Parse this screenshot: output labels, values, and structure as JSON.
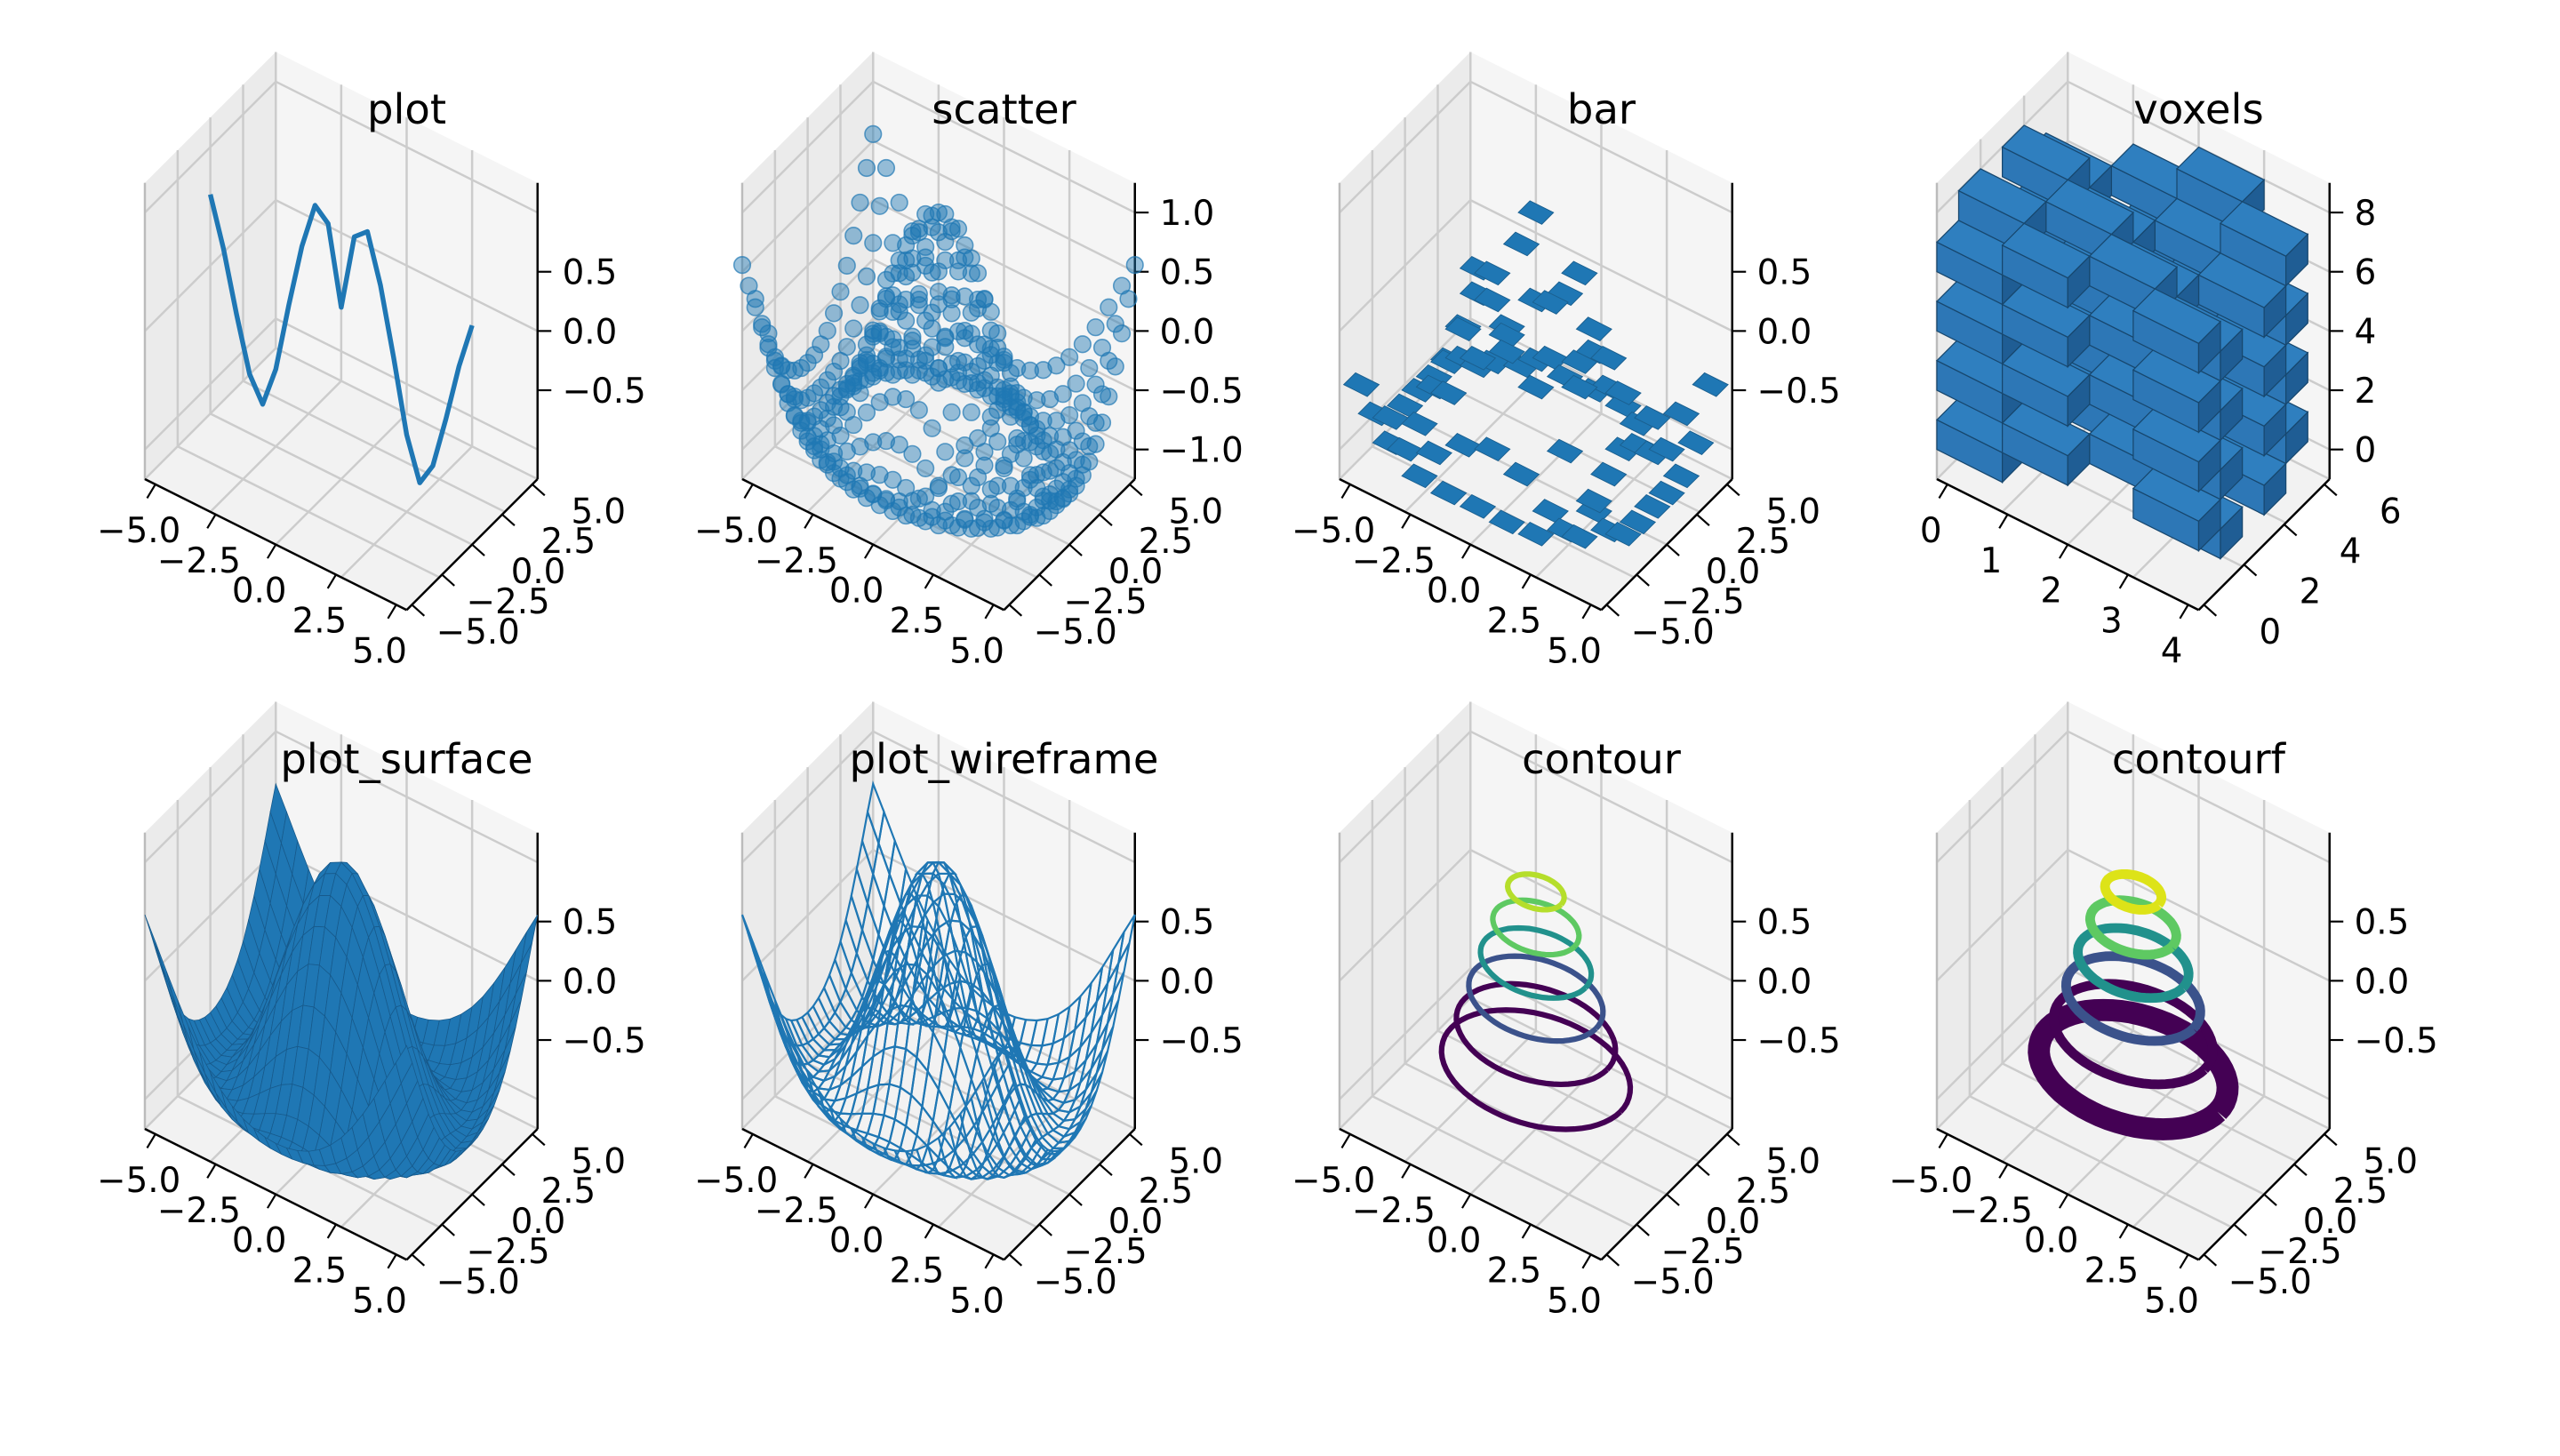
{
  "figure": {
    "background": "#ffffff",
    "pane_color": "#f2f2f2",
    "grid_color": "#cccccc",
    "series_color": "#1f77b4",
    "voxel_face": "#2d77b6",
    "voxel_side": "#1f5d94",
    "voxel_top": "#2f7fbf"
  },
  "chart_data": [
    {
      "type": "line3d",
      "title": "plot",
      "x_ticks": [
        "−5.0",
        "−2.5",
        "0.0",
        "2.5",
        "5.0"
      ],
      "y_ticks": [
        "−5.0",
        "−2.5",
        "0.0",
        "2.5",
        "5.0"
      ],
      "z_ticks": [
        "−0.5",
        "0.0",
        "0.5"
      ],
      "xlim": [
        -5,
        5
      ],
      "ylim": [
        -5,
        5
      ],
      "zlim": [
        -1,
        1
      ],
      "grid": true,
      "x": [
        -5,
        -4.5,
        -4,
        -3.5,
        -3,
        -2.5,
        -2,
        -1.5,
        -1,
        -0.5,
        0,
        0.5,
        1,
        1.5,
        2,
        2.5,
        3,
        3.5,
        4,
        4.5,
        5
      ],
      "z": [
        0.6,
        0.2,
        -0.3,
        -0.75,
        -0.95,
        -0.6,
        0.0,
        0.55,
        0.95,
        0.85,
        0.2,
        0.85,
        0.95,
        0.55,
        0.0,
        -0.6,
        -0.95,
        -0.75,
        -0.3,
        0.2,
        0.6
      ]
    },
    {
      "type": "scatter3d",
      "title": "scatter",
      "x_ticks": [
        "−5.0",
        "−2.5",
        "0.0",
        "2.5",
        "5.0"
      ],
      "y_ticks": [
        "−5.0",
        "−2.5",
        "0.0",
        "2.5",
        "5.0"
      ],
      "z_ticks": [
        "−1.0",
        "−0.5",
        "0.0",
        "0.5",
        "1.0"
      ],
      "xlim": [
        -5,
        5
      ],
      "ylim": [
        -5,
        5
      ],
      "zlim": [
        -1,
        1
      ],
      "grid": true
    },
    {
      "type": "bar3d",
      "title": "bar",
      "x_ticks": [
        "−5.0",
        "−2.5",
        "0.0",
        "2.5",
        "5.0"
      ],
      "y_ticks": [
        "−5.0",
        "−2.5",
        "0.0",
        "2.5",
        "5.0"
      ],
      "z_ticks": [
        "−0.5",
        "0.0",
        "0.5"
      ],
      "xlim": [
        -5,
        5
      ],
      "ylim": [
        -5,
        5
      ],
      "zlim": [
        -1,
        1
      ],
      "grid": true
    },
    {
      "type": "voxels",
      "title": "voxels",
      "x_ticks": [
        "0",
        "1",
        "2",
        "3",
        "4"
      ],
      "y_ticks": [
        "0",
        "2",
        "4",
        "6"
      ],
      "z_ticks": [
        "0",
        "2",
        "4",
        "6",
        "8"
      ],
      "xlim": [
        0,
        4
      ],
      "ylim": [
        0,
        6
      ],
      "zlim": [
        0,
        8
      ],
      "grid": true
    },
    {
      "type": "surface",
      "title": "plot_surface",
      "x_ticks": [
        "−5.0",
        "−2.5",
        "0.0",
        "2.5",
        "5.0"
      ],
      "y_ticks": [
        "−5.0",
        "−2.5",
        "0.0",
        "2.5",
        "5.0"
      ],
      "z_ticks": [
        "−0.5",
        "0.0",
        "0.5"
      ],
      "xlim": [
        -5,
        5
      ],
      "ylim": [
        -5,
        5
      ],
      "zlim": [
        -1,
        1
      ],
      "grid": true
    },
    {
      "type": "wireframe",
      "title": "plot_wireframe",
      "x_ticks": [
        "−5.0",
        "−2.5",
        "0.0",
        "2.5",
        "5.0"
      ],
      "y_ticks": [
        "−5.0",
        "−2.5",
        "0.0",
        "2.5",
        "5.0"
      ],
      "z_ticks": [
        "−0.5",
        "0.0",
        "0.5"
      ],
      "xlim": [
        -5,
        5
      ],
      "ylim": [
        -5,
        5
      ],
      "zlim": [
        -1,
        1
      ],
      "grid": true
    },
    {
      "type": "contour3d",
      "title": "contour",
      "x_ticks": [
        "−5.0",
        "−2.5",
        "0.0",
        "2.5",
        "5.0"
      ],
      "y_ticks": [
        "−5.0",
        "−2.5",
        "0.0",
        "2.5",
        "5.0"
      ],
      "z_ticks": [
        "−0.5",
        "0.0",
        "0.5"
      ],
      "xlim": [
        -5,
        5
      ],
      "ylim": [
        -5,
        5
      ],
      "zlim": [
        -1,
        1
      ],
      "grid": true,
      "level_colors": [
        "#440154",
        "#3b528b",
        "#21918c",
        "#5ec962",
        "#b5de2b"
      ]
    },
    {
      "type": "contourf3d",
      "title": "contourf",
      "x_ticks": [
        "−5.0",
        "−2.5",
        "0.0",
        "2.5",
        "5.0"
      ],
      "y_ticks": [
        "−5.0",
        "−2.5",
        "0.0",
        "2.5",
        "5.0"
      ],
      "z_ticks": [
        "−0.5",
        "0.0",
        "0.5"
      ],
      "xlim": [
        -5,
        5
      ],
      "ylim": [
        -5,
        5
      ],
      "zlim": [
        -1,
        1
      ],
      "grid": true,
      "level_colors": [
        "#440154",
        "#3b528b",
        "#21918c",
        "#5ec962",
        "#dde318"
      ]
    }
  ]
}
